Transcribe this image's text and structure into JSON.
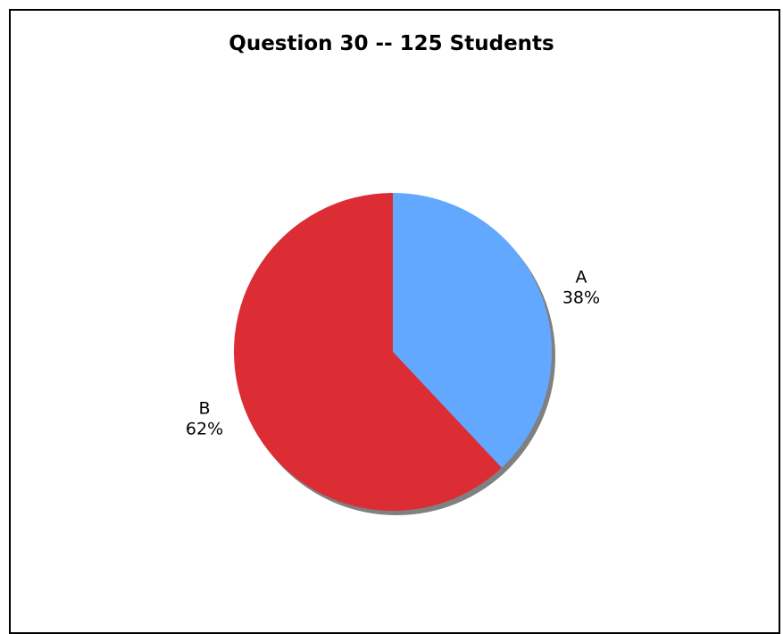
{
  "chart_data": {
    "type": "pie",
    "title": "Question 30 -- 125 Students",
    "slices": [
      {
        "name": "A",
        "percent_label": "38%",
        "value": 38,
        "color": "#62a8ff"
      },
      {
        "name": "B",
        "percent_label": "62%",
        "value": 62,
        "color": "#dc2c34"
      }
    ],
    "start_angle": "12 o'clock",
    "direction": "clockwise",
    "shadow_color": "#808080",
    "legend": "none"
  }
}
